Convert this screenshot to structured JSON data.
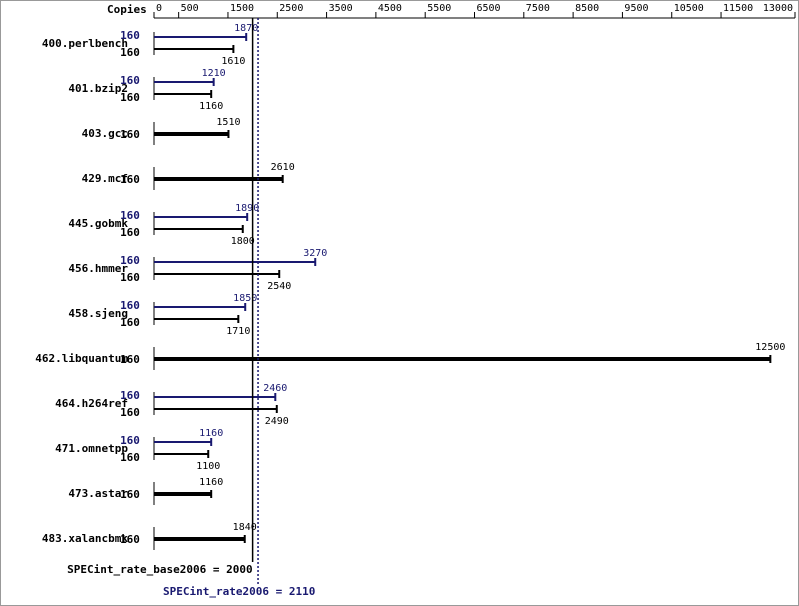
{
  "chart_data": {
    "type": "bar",
    "orientation": "horizontal",
    "copies_label": "Copies",
    "categories": [
      "400.perlbench",
      "401.bzip2",
      "403.gcc",
      "429.mcf",
      "445.gobmk",
      "456.hmmer",
      "458.sjeng",
      "462.libquantum",
      "464.h264ref",
      "471.omnetpp",
      "473.astar",
      "483.xalancbmk"
    ],
    "series": [
      {
        "color": "#191970",
        "copies": [
          160,
          160,
          null,
          null,
          160,
          160,
          160,
          null,
          160,
          160,
          null,
          null
        ],
        "values": [
          1870,
          1210,
          null,
          null,
          1890,
          3270,
          1850,
          null,
          2460,
          1160,
          null,
          null
        ]
      },
      {
        "color": "#000000",
        "copies": [
          160,
          160,
          160,
          160,
          160,
          160,
          160,
          160,
          160,
          160,
          160,
          160
        ],
        "values": [
          1610,
          1160,
          1510,
          2610,
          1800,
          2540,
          1710,
          12500,
          2490,
          1100,
          1160,
          1840
        ]
      }
    ],
    "xlim": [
      0,
      13000
    ],
    "xticks": [
      0,
      500,
      1500,
      2500,
      3500,
      4500,
      5500,
      6500,
      7500,
      8500,
      9500,
      10500,
      11500,
      13000
    ],
    "reference_lines": [
      {
        "label": "SPECint_rate_base2006 = 2000",
        "value": 2000,
        "color": "#000000",
        "style": "solid"
      },
      {
        "label": "SPECint_rate2006 = 2110",
        "value": 2110,
        "color": "#191970",
        "style": "dotted"
      }
    ]
  }
}
